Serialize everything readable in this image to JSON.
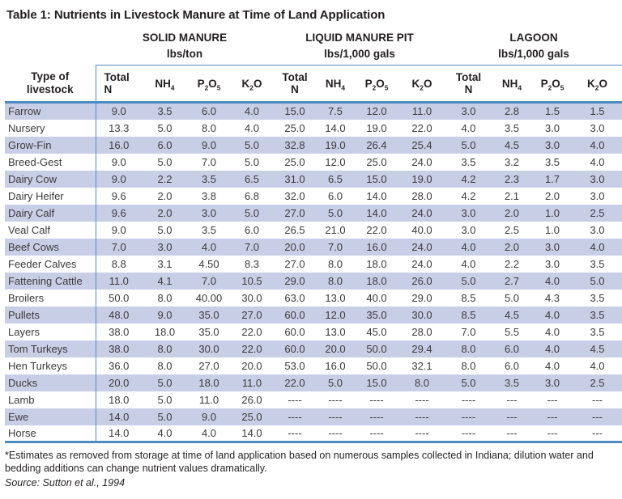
{
  "title": "Table 1: Nutrients in Livestock Manure at Time of Land Application",
  "colors": {
    "rule_blue": "#4d8bc2",
    "stripe_lavender": "#c9cee7",
    "text": "#231f20"
  },
  "table": {
    "row_header": "Type of\nlivestock",
    "groups": [
      {
        "name": "SOLID MANURE",
        "unit": "lbs/ton"
      },
      {
        "name": "LIQUID MANURE PIT",
        "unit": "lbs/1,000 gals"
      },
      {
        "name": "LAGOON",
        "unit": "lbs/1,000 gals"
      }
    ],
    "columns": [
      "Total\nN",
      "NH_4",
      "P_2O_5",
      "K_2O",
      "Total\nN",
      "NH_4",
      "P_2O_5",
      "K_2O",
      "Total\nN",
      "NH_4",
      "P_2O_5",
      "K_2O"
    ],
    "rows": [
      {
        "livestock": "Farrow",
        "values": [
          "9.0",
          "3.5",
          "6.0",
          "4.0",
          "15.0",
          "7.5",
          "12.0",
          "11.0",
          "3.0",
          "2.8",
          "1.5",
          "1.5"
        ]
      },
      {
        "livestock": "Nursery",
        "values": [
          "13.3",
          "5.0",
          "8.0",
          "4.0",
          "25.0",
          "14.0",
          "19.0",
          "22.0",
          "4.0",
          "3.5",
          "3.0",
          "3.0"
        ]
      },
      {
        "livestock": "Grow-Fin",
        "values": [
          "16.0",
          "6.0",
          "9.0",
          "5.0",
          "32.8",
          "19.0",
          "26.4",
          "25.4",
          "5.0",
          "4.5",
          "3.0",
          "4.0"
        ]
      },
      {
        "livestock": "Breed-Gest",
        "values": [
          "9.0",
          "5.0",
          "7.0",
          "5.0",
          "25.0",
          "12.0",
          "25.0",
          "24.0",
          "3.5",
          "3.2",
          "3.5",
          "4.0"
        ]
      },
      {
        "livestock": "Dairy Cow",
        "values": [
          "9.0",
          "2.2",
          "3.5",
          "6.5",
          "31.0",
          "6.5",
          "15.0",
          "19.0",
          "4.2",
          "2.3",
          "1.7",
          "3.0"
        ]
      },
      {
        "livestock": "Dairy Heifer",
        "values": [
          "9.6",
          "2.0",
          "3.8",
          "6.8",
          "32.0",
          "6.0",
          "14.0",
          "28.0",
          "4.2",
          "2.1",
          "2.0",
          "3.0"
        ]
      },
      {
        "livestock": "Dairy Calf",
        "values": [
          "9.6",
          "2.0",
          "3.0",
          "5.0",
          "27.0",
          "5.0",
          "14.0",
          "24.0",
          "3.0",
          "2.0",
          "1.0",
          "2.5"
        ]
      },
      {
        "livestock": "Veal Calf",
        "values": [
          "9.0",
          "5.0",
          "3.5",
          "6.0",
          "26.5",
          "21.0",
          "22.0",
          "40.0",
          "3.0",
          "2.5",
          "1.0",
          "3.0"
        ]
      },
      {
        "livestock": "Beef Cows",
        "values": [
          "7.0",
          "3.0",
          "4.0",
          "7.0",
          "20.0",
          "7.0",
          "16.0",
          "24.0",
          "4.0",
          "2.0",
          "3.0",
          "4.0"
        ]
      },
      {
        "livestock": "Feeder Calves",
        "values": [
          "8.8",
          "3.1",
          "4.50",
          "8.3",
          "27.0",
          "8.0",
          "18.0",
          "24.0",
          "4.0",
          "2.2",
          "3.0",
          "3.5"
        ]
      },
      {
        "livestock": "Fattening Cattle",
        "values": [
          "11.0",
          "4.1",
          "7.0",
          "10.5",
          "29.0",
          "8.0",
          "18.0",
          "26.0",
          "5.0",
          "2.7",
          "4.0",
          "5.0"
        ]
      },
      {
        "livestock": "Broilers",
        "values": [
          "50.0",
          "8.0",
          "40.00",
          "30.0",
          "63.0",
          "13.0",
          "40.0",
          "29.0",
          "8.5",
          "5.0",
          "4.3",
          "3.5"
        ]
      },
      {
        "livestock": "Pullets",
        "values": [
          "48.0",
          "9.0",
          "35.0",
          "27.0",
          "60.0",
          "12.0",
          "35.0",
          "30.0",
          "8.5",
          "4.5",
          "4.0",
          "3.5"
        ]
      },
      {
        "livestock": "Layers",
        "values": [
          "38.0",
          "18.0",
          "35.0",
          "22.0",
          "60.0",
          "13.0",
          "45.0",
          "28.0",
          "7.0",
          "5.5",
          "4.0",
          "3.5"
        ]
      },
      {
        "livestock": "Tom Turkeys",
        "values": [
          "38.0",
          "8.0",
          "30.0",
          "22.0",
          "60.0",
          "20.0",
          "50.0",
          "29.4",
          "8.0",
          "6.0",
          "4.0",
          "4.5"
        ]
      },
      {
        "livestock": "Hen Turkeys",
        "values": [
          "36.0",
          "8.0",
          "27.0",
          "20.0",
          "53.0",
          "16.0",
          "50.0",
          "32.1",
          "8.0",
          "6.0",
          "4.0",
          "4.0"
        ]
      },
      {
        "livestock": "Ducks",
        "values": [
          "20.0",
          "5.0",
          "18.0",
          "11.0",
          "22.0",
          "5.0",
          "15.0",
          "8.0",
          "5.0",
          "3.5",
          "3.0",
          "2.5"
        ]
      },
      {
        "livestock": "Lamb",
        "values": [
          "18.0",
          "5.0",
          "11.0",
          "26.0",
          "----",
          "----",
          "----",
          "----",
          "----",
          "---",
          "---",
          "---"
        ]
      },
      {
        "livestock": "Ewe",
        "values": [
          "14.0",
          "5.0",
          "9.0",
          "25.0",
          "----",
          "----",
          "----",
          "----",
          "----",
          "---",
          "---",
          "---"
        ]
      },
      {
        "livestock": "Horse",
        "values": [
          "14.0",
          "4.0",
          "4.0",
          "14.0",
          "----",
          "----",
          "----",
          "----",
          "----",
          "---",
          "---",
          "---"
        ]
      }
    ]
  },
  "footnote": {
    "text": "*Estimates as removed from storage at time of land application based on numerous samples collected in Indiana; dilution water and bedding additions can change nutrient values dramatically.",
    "source": "Source: Sutton et al., 1994"
  }
}
